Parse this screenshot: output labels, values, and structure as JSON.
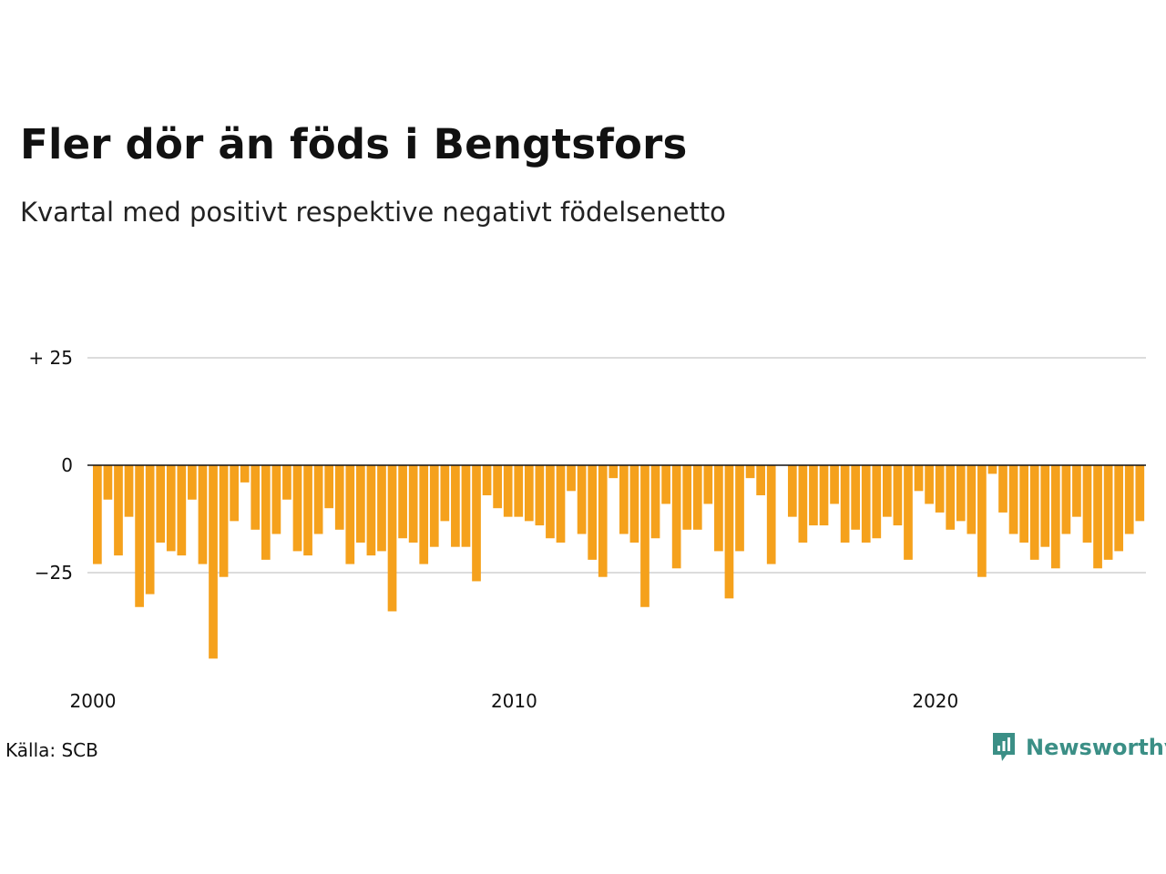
{
  "title": "Fler dör än föds i Bengtsfors",
  "subtitle": "Kvartal med positivt respektive negativt födelsenetto",
  "source": "Källa: SCB",
  "brand": {
    "name": "Newsworthy",
    "icon": "newsworthy-logo-icon",
    "color": "#3b8f86"
  },
  "chart_data": {
    "type": "bar",
    "bar_color": "#f5a11c",
    "x_start": "2000-Q1",
    "x_end": "2024-Q4",
    "x_ticks": [
      "2000",
      "2010",
      "2020"
    ],
    "y_ticks": [
      "+ 25",
      "0",
      "−25"
    ],
    "y_tick_values": [
      25,
      0,
      -25
    ],
    "ylim": [
      -47,
      29
    ],
    "grid": true,
    "quarters": [
      "2000-Q1",
      "2000-Q2",
      "2000-Q3",
      "2000-Q4",
      "2001-Q1",
      "2001-Q2",
      "2001-Q3",
      "2001-Q4",
      "2002-Q1",
      "2002-Q2",
      "2002-Q3",
      "2002-Q4",
      "2003-Q1",
      "2003-Q2",
      "2003-Q3",
      "2003-Q4",
      "2004-Q1",
      "2004-Q2",
      "2004-Q3",
      "2004-Q4",
      "2005-Q1",
      "2005-Q2",
      "2005-Q3",
      "2005-Q4",
      "2006-Q1",
      "2006-Q2",
      "2006-Q3",
      "2006-Q4",
      "2007-Q1",
      "2007-Q2",
      "2007-Q3",
      "2007-Q4",
      "2008-Q1",
      "2008-Q2",
      "2008-Q3",
      "2008-Q4",
      "2009-Q1",
      "2009-Q2",
      "2009-Q3",
      "2009-Q4",
      "2010-Q1",
      "2010-Q2",
      "2010-Q3",
      "2010-Q4",
      "2011-Q1",
      "2011-Q2",
      "2011-Q3",
      "2011-Q4",
      "2012-Q1",
      "2012-Q2",
      "2012-Q3",
      "2012-Q4",
      "2013-Q1",
      "2013-Q2",
      "2013-Q3",
      "2013-Q4",
      "2014-Q1",
      "2014-Q2",
      "2014-Q3",
      "2014-Q4",
      "2015-Q1",
      "2015-Q2",
      "2015-Q3",
      "2015-Q4",
      "2016-Q1",
      "2016-Q2",
      "2016-Q3",
      "2016-Q4",
      "2017-Q1",
      "2017-Q2",
      "2017-Q3",
      "2017-Q4",
      "2018-Q1",
      "2018-Q2",
      "2018-Q3",
      "2018-Q4",
      "2019-Q1",
      "2019-Q2",
      "2019-Q3",
      "2019-Q4",
      "2020-Q1",
      "2020-Q2",
      "2020-Q3",
      "2020-Q4",
      "2021-Q1",
      "2021-Q2",
      "2021-Q3",
      "2021-Q4",
      "2022-Q1",
      "2022-Q2",
      "2022-Q3",
      "2022-Q4",
      "2023-Q1",
      "2023-Q2",
      "2023-Q3",
      "2023-Q4",
      "2024-Q1",
      "2024-Q2",
      "2024-Q3",
      "2024-Q4"
    ],
    "values": [
      -23,
      -8,
      -21,
      -12,
      -33,
      -30,
      -18,
      -20,
      -21,
      -8,
      -23,
      -45,
      -26,
      -13,
      -4,
      -15,
      -22,
      -16,
      -8,
      -20,
      -21,
      -16,
      -10,
      -15,
      -23,
      -18,
      -21,
      -20,
      -34,
      -17,
      -18,
      -23,
      -19,
      -13,
      -19,
      -19,
      -27,
      -7,
      -10,
      -12,
      -12,
      -13,
      -14,
      -17,
      -18,
      -6,
      -16,
      -22,
      -26,
      -3,
      -16,
      -18,
      -33,
      -17,
      -9,
      -24,
      -15,
      -15,
      -9,
      -20,
      -31,
      -20,
      -3,
      -7,
      -23,
      0,
      -12,
      -18,
      -14,
      -14,
      -9,
      -18,
      -15,
      -18,
      -17,
      -12,
      -14,
      -22,
      -6,
      -9,
      -11,
      -15,
      -13,
      -16,
      -26,
      -2,
      -11,
      -16,
      -18,
      -22,
      -19,
      -24,
      -16,
      -12,
      -18,
      -24,
      -22,
      -20,
      -16,
      -13
    ]
  }
}
